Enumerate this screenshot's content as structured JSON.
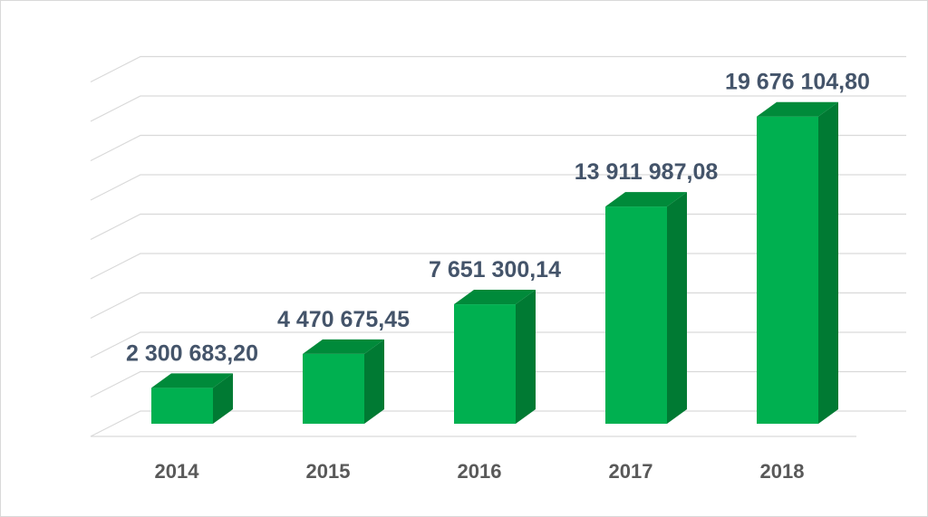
{
  "chart_data": {
    "type": "bar",
    "style": "3d-column",
    "categories": [
      "2014",
      "2015",
      "2016",
      "2017",
      "2018"
    ],
    "values": [
      2300683.2,
      4470675.45,
      7651300.14,
      13911987.08,
      19676104.8
    ],
    "data_labels": [
      "2 300 683,20",
      "4 470 675,45",
      "7 651 300,14",
      "13 911 987,08",
      "19 676 104,80"
    ],
    "title": "",
    "xlabel": "",
    "ylabel": "",
    "ylim": [
      0,
      22500000
    ],
    "grid": true,
    "legend": "none",
    "colors": {
      "bar_front": "#00b050",
      "bar_top": "#008a3a",
      "bar_side": "#007a33",
      "label": "#44546a",
      "tick": "#595959",
      "grid": "#d9d9d9"
    }
  }
}
